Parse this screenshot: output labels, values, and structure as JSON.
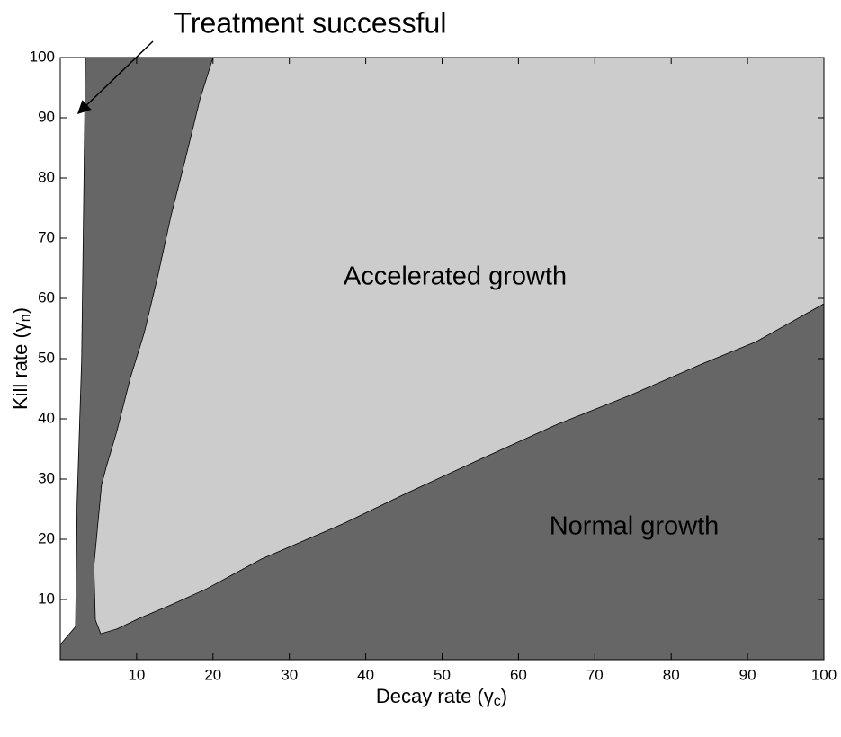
{
  "chart_data": {
    "type": "region",
    "xlabel": [
      "Decay rate (γ",
      "c",
      ")"
    ],
    "ylabel": [
      "Kill rate (γ",
      "n",
      ")"
    ],
    "xlim": [
      0,
      100
    ],
    "ylim": [
      0,
      100
    ],
    "xticks": [
      10,
      20,
      30,
      40,
      50,
      60,
      70,
      80,
      90,
      100
    ],
    "yticks": [
      10,
      20,
      30,
      40,
      50,
      60,
      70,
      80,
      90,
      100
    ],
    "series": [
      {
        "name": "Normal growth",
        "color": "#666666",
        "x": [
          0,
          100,
          100,
          0
        ],
        "y": [
          0,
          0,
          100,
          100
        ]
      },
      {
        "name": "Treatment successful",
        "color": "#ffffff",
        "x": [
          0,
          3.3,
          3.1,
          2.8,
          2.5,
          2.2,
          2.1,
          2.0,
          0
        ],
        "y": [
          100,
          100,
          79.7,
          49.9,
          37.9,
          26,
          15.5,
          5.5,
          2.5
        ]
      },
      {
        "name": "Accelerated growth",
        "color": "#cccccc",
        "x": [
          20,
          100,
          100,
          91.1,
          84,
          74.6,
          65.1,
          55.7,
          45.1,
          36.9,
          26.3,
          19.2,
          14.5,
          10.4,
          7.4,
          5.3,
          4.6,
          4.4,
          5.4,
          6,
          7.4,
          9.2,
          11,
          12.7,
          14.5,
          16.3,
          18.3
        ],
        "y": [
          100,
          100,
          59.1,
          52.8,
          49.1,
          43.9,
          39.1,
          33.7,
          27.5,
          22.5,
          16.7,
          11.8,
          9.1,
          6.9,
          5.1,
          4.3,
          6.6,
          15.5,
          29,
          31.9,
          37.9,
          46.9,
          54.3,
          63.3,
          73.7,
          82.7,
          93.1
        ]
      }
    ]
  }
}
